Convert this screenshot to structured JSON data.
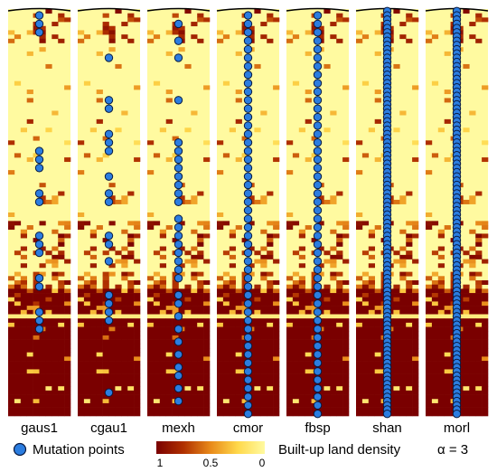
{
  "chart_data": {
    "type": "scatter",
    "title": "",
    "description_kind": "small multiples: built-up land density strips with mutation points",
    "panels": [
      {
        "name": "gaus1",
        "mutation_rows": [
          1,
          3,
          5,
          33,
          35,
          37,
          43,
          45,
          53,
          55,
          57,
          63,
          65,
          71,
          73,
          75
        ]
      },
      {
        "name": "cgau1",
        "mutation_rows": [
          11,
          21,
          23,
          29,
          31,
          33,
          39,
          43,
          45,
          53,
          55,
          59,
          67,
          69,
          71,
          73,
          90
        ]
      },
      {
        "name": "mexh",
        "mutation_rows": [
          3,
          7,
          11,
          21,
          31,
          33,
          35,
          37,
          39,
          41,
          43,
          45,
          49,
          51,
          53,
          55,
          57,
          59,
          61,
          63,
          67,
          69,
          72,
          75,
          78,
          81,
          84,
          86,
          89,
          92
        ]
      },
      {
        "name": "cmor",
        "mutation_rows": "dense_odd_1_95"
      },
      {
        "name": "fbsp",
        "mutation_rows": "dense_odd_1_95"
      },
      {
        "name": "shan",
        "mutation_rows": "dense_all_0_95"
      },
      {
        "name": "morl",
        "mutation_rows": "dense_all_0_95"
      }
    ],
    "colorbar": {
      "label": "Built-up land density",
      "ticks": [
        "1",
        "0.5",
        "0"
      ],
      "colors": [
        "#7a0000",
        "#c04a00",
        "#e88a1a",
        "#ffd84a",
        "#fffaa0"
      ]
    },
    "legend": {
      "marker_label": "Mutation points",
      "marker_color": "#2b7de0",
      "marker_edge": "#0a1a40"
    },
    "annotation": "α = 3",
    "colors": {
      "high_density": "#7a0000",
      "low_density": "#fffaa0"
    }
  }
}
